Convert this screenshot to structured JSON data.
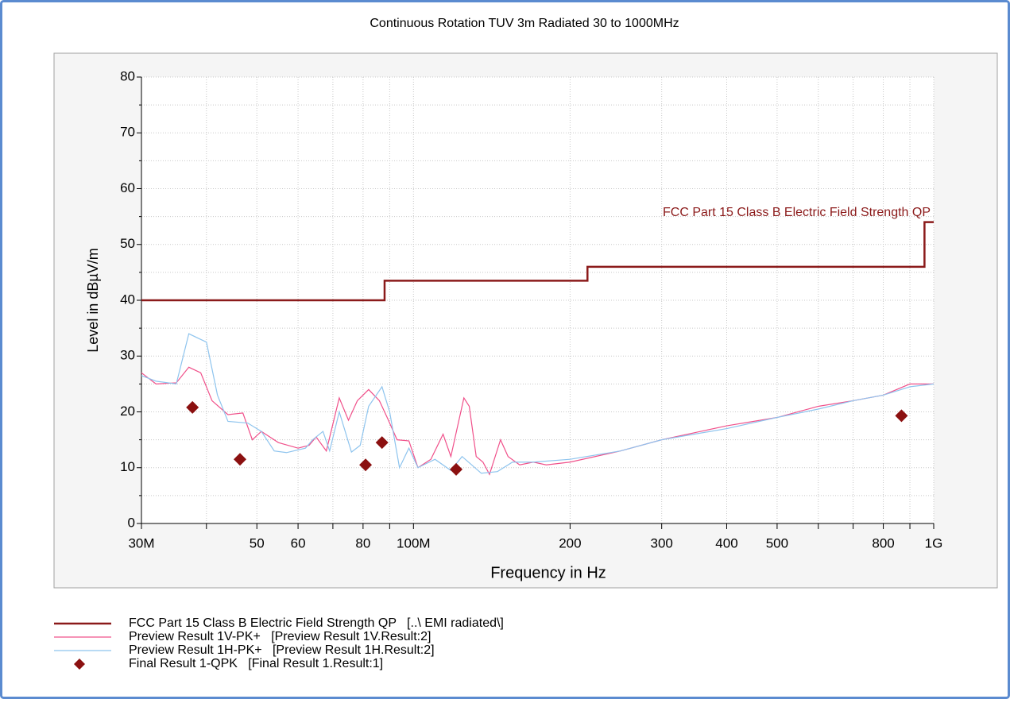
{
  "chart_data": {
    "type": "line",
    "title": "Continuous Rotation TUV 3m Radiated 30 to 1000MHz",
    "x_label": "Frequency in Hz",
    "y_label": "Level in dBµV/m",
    "xscale": "log",
    "xlim": [
      30000000,
      1000000000
    ],
    "xticks": [
      {
        "value": 30000000,
        "label": "30M"
      },
      {
        "value": 50000000,
        "label": "50"
      },
      {
        "value": 60000000,
        "label": "60"
      },
      {
        "value": 80000000,
        "label": "80"
      },
      {
        "value": 100000000,
        "label": "100M"
      },
      {
        "value": 200000000,
        "label": "200"
      },
      {
        "value": 300000000,
        "label": "300"
      },
      {
        "value": 400000000,
        "label": "400"
      },
      {
        "value": 500000000,
        "label": "500"
      },
      {
        "value": 800000000,
        "label": "800"
      },
      {
        "value": 1000000000,
        "label": "1G"
      }
    ],
    "xminor_ticks": [
      40000000,
      70000000,
      90000000,
      600000000,
      700000000,
      900000000
    ],
    "ylim": [
      0,
      80
    ],
    "yticks": [
      0,
      10,
      20,
      30,
      40,
      50,
      60,
      70,
      80
    ],
    "grid": true,
    "annotation": "FCC Part 15 Class B Electric Field Strength QP",
    "series": [
      {
        "name": "FCC Part 15 Class B Electric Field Strength QP   [..\\ EMI radiated\\]",
        "color": "#8b1a1a",
        "style": "line",
        "width": 2.5,
        "x": [
          30000000,
          88000000,
          88000000,
          216000000,
          216000000,
          960000000,
          960000000,
          1000000000
        ],
        "values": [
          40,
          40,
          43.5,
          43.5,
          46,
          46,
          54,
          54
        ]
      },
      {
        "name": "Preview Result 1V-PK+   [Preview Result 1V.Result:2]",
        "color": "#f0508a",
        "style": "line",
        "width": 1.2,
        "x": [
          30000000,
          32000000,
          35000000,
          37000000,
          39000000,
          41000000,
          44000000,
          47000000,
          49000000,
          51000000,
          55000000,
          60000000,
          63000000,
          65000000,
          68000000,
          72000000,
          75000000,
          78000000,
          82000000,
          86000000,
          89000000,
          93000000,
          98000000,
          102000000,
          108000000,
          114000000,
          118000000,
          125000000,
          128000000,
          132000000,
          136000000,
          140000000,
          147000000,
          152000000,
          160000000,
          170000000,
          180000000,
          200000000,
          250000000,
          300000000,
          400000000,
          500000000,
          600000000,
          700000000,
          800000000,
          900000000,
          1000000000
        ],
        "values": [
          27,
          25,
          25.2,
          28,
          27,
          22,
          19.5,
          19.8,
          15,
          16.5,
          14.5,
          13.5,
          14,
          15.5,
          13,
          22.5,
          18.5,
          22,
          24,
          22,
          19,
          15,
          14.8,
          10,
          11.5,
          16,
          12,
          22.5,
          21,
          12,
          11,
          8.8,
          15,
          12,
          10.5,
          11,
          10.5,
          11,
          13,
          15,
          17.5,
          19,
          21,
          22,
          23,
          25,
          25
        ]
      },
      {
        "name": "Preview Result 1H-PK+   [Preview Result 1H.Result:2]",
        "color": "#8ec4ee",
        "style": "line",
        "width": 1.2,
        "x": [
          30000000,
          32000000,
          35000000,
          37000000,
          40000000,
          42000000,
          44000000,
          48000000,
          51000000,
          54000000,
          57000000,
          62000000,
          64000000,
          67000000,
          69000000,
          72000000,
          76000000,
          79000000,
          82000000,
          87000000,
          90000000,
          94000000,
          98000000,
          102000000,
          110000000,
          118000000,
          124000000,
          135000000,
          145000000,
          155000000,
          170000000,
          200000000,
          250000000,
          300000000,
          400000000,
          500000000,
          600000000,
          700000000,
          800000000,
          900000000,
          1000000000
        ],
        "values": [
          26.5,
          25.5,
          25,
          34,
          32.5,
          23,
          18.3,
          18,
          16.5,
          13,
          12.7,
          13.5,
          15,
          16.5,
          13,
          20,
          12.8,
          14,
          21,
          24.5,
          20,
          10,
          13.5,
          10,
          11.5,
          9.5,
          12,
          9,
          9.3,
          11,
          11,
          11.5,
          13,
          15,
          17,
          19,
          20.5,
          22,
          23,
          24.5,
          25
        ]
      },
      {
        "name": "Final Result 1-QPK   [Final Result 1.Result:1]",
        "color": "#8b1010",
        "style": "diamond",
        "x": [
          37600000,
          46400000,
          80900000,
          87000000,
          120800000,
          867000000
        ],
        "values": [
          20.8,
          11.5,
          10.5,
          14.5,
          9.7,
          19.3
        ]
      }
    ]
  }
}
